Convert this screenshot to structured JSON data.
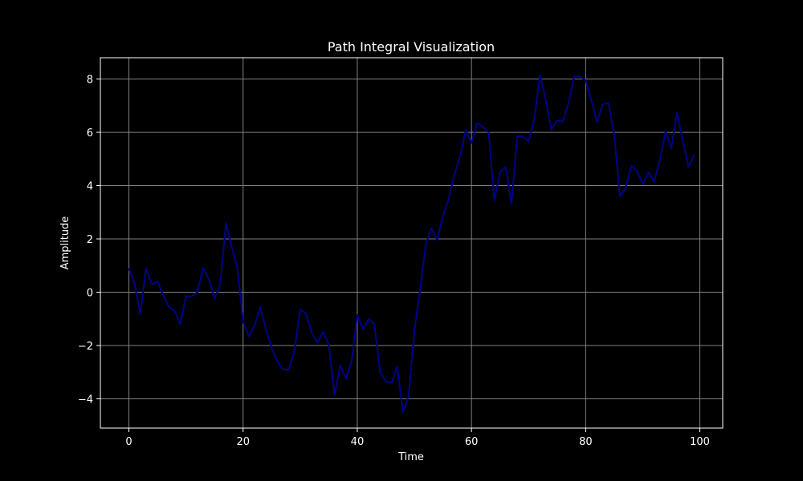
{
  "chart_data": {
    "type": "line",
    "title": "Path Integral Visualization",
    "xlabel": "Time",
    "ylabel": "Amplitude",
    "xlim": [
      -5,
      104
    ],
    "ylim": [
      -5.1,
      8.8
    ],
    "xticks": [
      0,
      20,
      40,
      60,
      80,
      100
    ],
    "yticks": [
      -4,
      -2,
      0,
      2,
      4,
      6,
      8
    ],
    "grid": true,
    "colors": {
      "background": "#000000",
      "line": "#00008b",
      "grid": "#808080",
      "text": "#ffffff",
      "frame": "#ffffff"
    },
    "series": [
      {
        "x": [
          0,
          1,
          2,
          3,
          4,
          5,
          6,
          7,
          8,
          9,
          10,
          11,
          12,
          13,
          14,
          15,
          16,
          17,
          18,
          19,
          20,
          21,
          22,
          23,
          24,
          25,
          26,
          27,
          28,
          29,
          30,
          31,
          32,
          33,
          34,
          35,
          36,
          37,
          38,
          39,
          40,
          41,
          42,
          43,
          44,
          45,
          46,
          47,
          48,
          49,
          50,
          51,
          52,
          53,
          54,
          55,
          56,
          57,
          58,
          59,
          60,
          61,
          62,
          63,
          64,
          65,
          66,
          67,
          68,
          69,
          70,
          71,
          72,
          73,
          74,
          75,
          76,
          77,
          78,
          79,
          80,
          81,
          82,
          83,
          84,
          85,
          86,
          87,
          88,
          89,
          90,
          91,
          92,
          93,
          94,
          95,
          96,
          97,
          98,
          99
        ],
        "y": [
          0.9,
          0.3,
          -0.8,
          0.9,
          0.3,
          0.4,
          -0.1,
          -0.55,
          -0.7,
          -1.2,
          -0.15,
          -0.15,
          0.0,
          0.9,
          0.5,
          -0.25,
          0.3,
          2.6,
          1.7,
          0.9,
          -1.1,
          -1.65,
          -1.25,
          -0.55,
          -1.4,
          -2.1,
          -2.6,
          -2.9,
          -2.9,
          -2.2,
          -0.65,
          -0.8,
          -1.5,
          -1.9,
          -1.5,
          -1.95,
          -3.85,
          -2.75,
          -3.25,
          -2.6,
          -0.85,
          -1.4,
          -1.0,
          -1.2,
          -3.0,
          -3.35,
          -3.4,
          -2.8,
          -4.5,
          -3.9,
          -1.45,
          0.1,
          1.8,
          2.4,
          1.95,
          2.85,
          3.5,
          4.4,
          5.1,
          6.1,
          5.6,
          6.35,
          6.2,
          6.0,
          3.45,
          4.5,
          4.7,
          3.3,
          5.85,
          5.85,
          5.65,
          6.5,
          8.15,
          7.2,
          6.1,
          6.45,
          6.4,
          7.1,
          8.1,
          8.1,
          7.95,
          7.2,
          6.4,
          7.05,
          7.1,
          5.9,
          3.6,
          3.9,
          4.75,
          4.55,
          4.05,
          4.5,
          4.15,
          4.95,
          6.05,
          5.4,
          6.75,
          5.7,
          4.7,
          5.15
        ]
      }
    ]
  }
}
